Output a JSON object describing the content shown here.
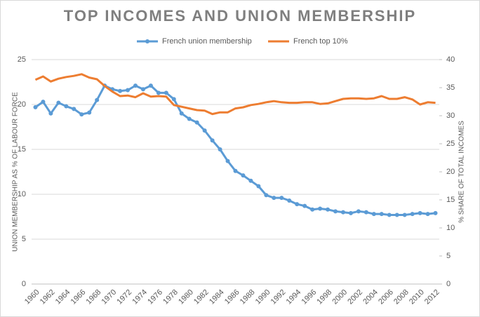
{
  "chart_data": {
    "type": "line",
    "title": "TOP INCOMES AND UNION MEMBERSHIP",
    "y_label": "UNION MEMBERSHIP AS % OF LABOUR FORCE",
    "y2_label": "% SHARE OF TOTAL INCOMES",
    "categories": [
      "1960",
      null,
      "1962",
      null,
      "1964",
      null,
      "1966",
      null,
      "1968",
      null,
      "1970",
      null,
      "1972",
      null,
      "1974",
      null,
      "1976",
      null,
      "1978",
      null,
      "1980",
      null,
      "1982",
      null,
      "1984",
      null,
      "1986",
      null,
      "1988",
      null,
      "1990",
      null,
      "1992",
      null,
      "1994",
      null,
      "1996",
      null,
      "1998",
      null,
      "2000",
      null,
      "2002",
      null,
      "2004",
      null,
      "2006",
      null,
      "2008",
      null,
      "2010",
      null,
      "2012"
    ],
    "series": [
      {
        "name": "French union membership",
        "color": "#5b9bd5",
        "markers": true,
        "values": [
          19.7,
          20.3,
          19.0,
          20.2,
          19.8,
          19.5,
          18.9,
          19.1,
          20.5,
          22.1,
          21.7,
          21.5,
          21.6,
          22.1,
          21.7,
          22.1,
          21.3,
          21.3,
          20.6,
          19.0,
          18.4,
          18.0,
          17.1,
          16.0,
          15.0,
          13.7,
          12.6,
          12.1,
          11.5,
          10.9,
          9.9,
          9.6,
          9.6,
          9.3,
          8.9,
          8.7,
          8.3,
          8.4,
          8.3,
          8.1,
          8.0,
          7.9,
          8.1,
          8.0,
          7.8,
          7.8,
          7.7,
          7.7,
          7.7,
          7.8,
          7.9,
          7.8,
          7.9
        ]
      },
      {
        "name": "French top 10%",
        "color": "#ed7d31",
        "axis": "y2",
        "markers": false,
        "values": [
          36.4,
          37.0,
          36.1,
          36.6,
          36.9,
          37.1,
          37.4,
          36.8,
          36.5,
          35.3,
          34.3,
          33.5,
          33.6,
          33.3,
          34.0,
          33.4,
          33.5,
          33.4,
          31.9,
          31.6,
          31.3,
          31.0,
          30.9,
          30.3,
          30.6,
          30.6,
          31.3,
          31.5,
          31.9,
          32.1,
          32.4,
          32.6,
          32.4,
          32.3,
          32.3,
          32.4,
          32.4,
          32.1,
          32.2,
          32.6,
          33.0,
          33.1,
          33.1,
          33.0,
          33.1,
          33.5,
          33.0,
          33.0,
          33.3,
          32.9,
          32.0,
          32.4,
          32.3
        ]
      }
    ],
    "ylim": [
      0,
      25
    ],
    "yticks": [
      0,
      5,
      10,
      15,
      20,
      25
    ],
    "y2lim": [
      0,
      40
    ],
    "y2ticks": [
      0,
      5,
      10,
      15,
      20,
      25,
      30,
      35,
      40
    ],
    "grid": true
  }
}
